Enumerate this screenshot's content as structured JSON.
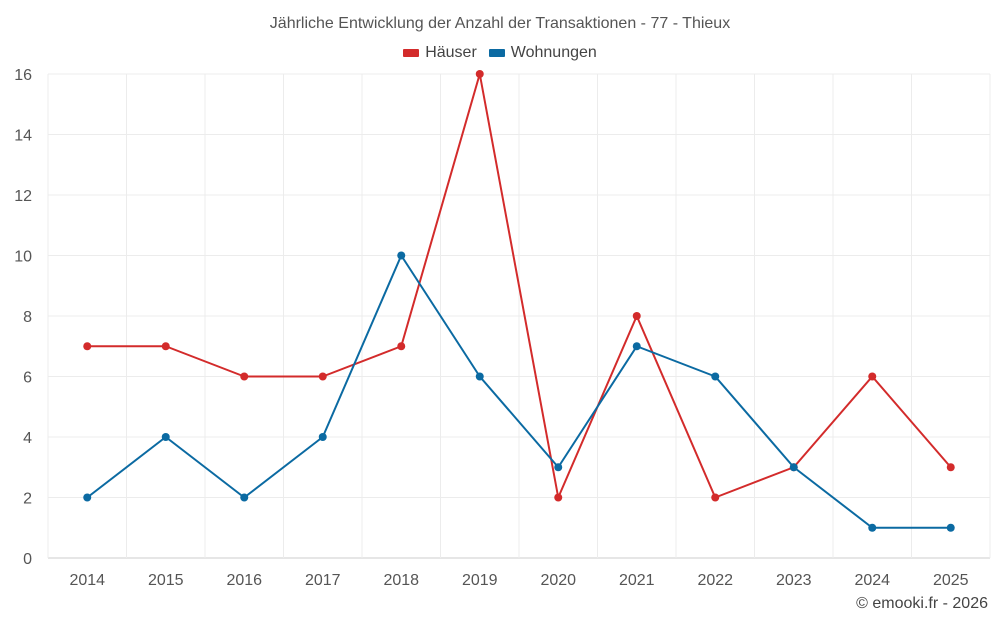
{
  "chart_data": {
    "type": "line",
    "title": "Jährliche Entwicklung der Anzahl der Transaktionen - 77 - Thieux",
    "categories": [
      "2014",
      "2015",
      "2016",
      "2017",
      "2018",
      "2019",
      "2020",
      "2021",
      "2022",
      "2023",
      "2024",
      "2025"
    ],
    "series": [
      {
        "name": "Häuser",
        "color": "#d32b2b",
        "values": [
          7,
          7,
          6,
          6,
          7,
          16,
          2,
          8,
          2,
          3,
          6,
          3
        ]
      },
      {
        "name": "Wohnungen",
        "color": "#0b6aa2",
        "values": [
          2,
          4,
          2,
          4,
          10,
          6,
          3,
          7,
          6,
          3,
          1,
          1
        ]
      }
    ],
    "ylim": [
      0,
      16
    ],
    "yticks": [
      0,
      2,
      4,
      6,
      8,
      10,
      12,
      14,
      16
    ],
    "xlabel": "",
    "ylabel": "",
    "grid": true,
    "legend_position": "top-center"
  },
  "credit": "© emooki.fr - 2026"
}
